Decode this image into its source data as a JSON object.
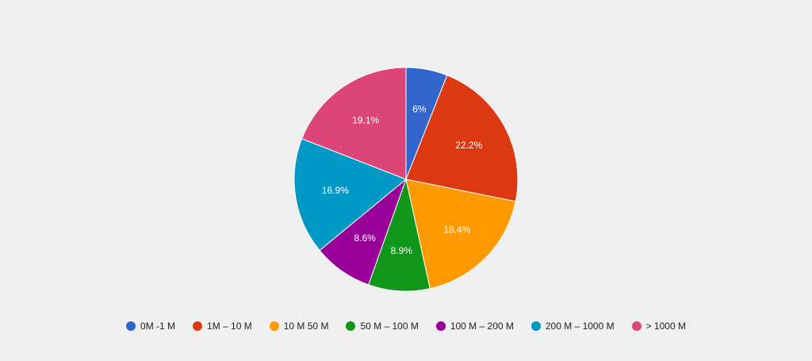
{
  "chart_data": {
    "type": "pie",
    "title": "",
    "legend_position": "bottom",
    "slices": [
      {
        "label": "0M -1 M",
        "value": 6.0,
        "display": "6%",
        "color": "#3366cc"
      },
      {
        "label": "1M – 10 M",
        "value": 22.2,
        "display": "22.2%",
        "color": "#dc3912"
      },
      {
        "label": "10 M 50 M",
        "value": 18.4,
        "display": "18.4%",
        "color": "#ff9900"
      },
      {
        "label": "50 M – 100 M",
        "value": 8.9,
        "display": "8.9%",
        "color": "#109618"
      },
      {
        "label": "100 M – 200 M",
        "value": 8.6,
        "display": "8.6%",
        "color": "#990099"
      },
      {
        "label": "200 M – 1000 M",
        "value": 16.9,
        "display": "16.9%",
        "color": "#0099c6"
      },
      {
        "label": "> 1000 M",
        "value": 19.1,
        "display": "19.1%",
        "color": "#dd4477"
      }
    ]
  }
}
